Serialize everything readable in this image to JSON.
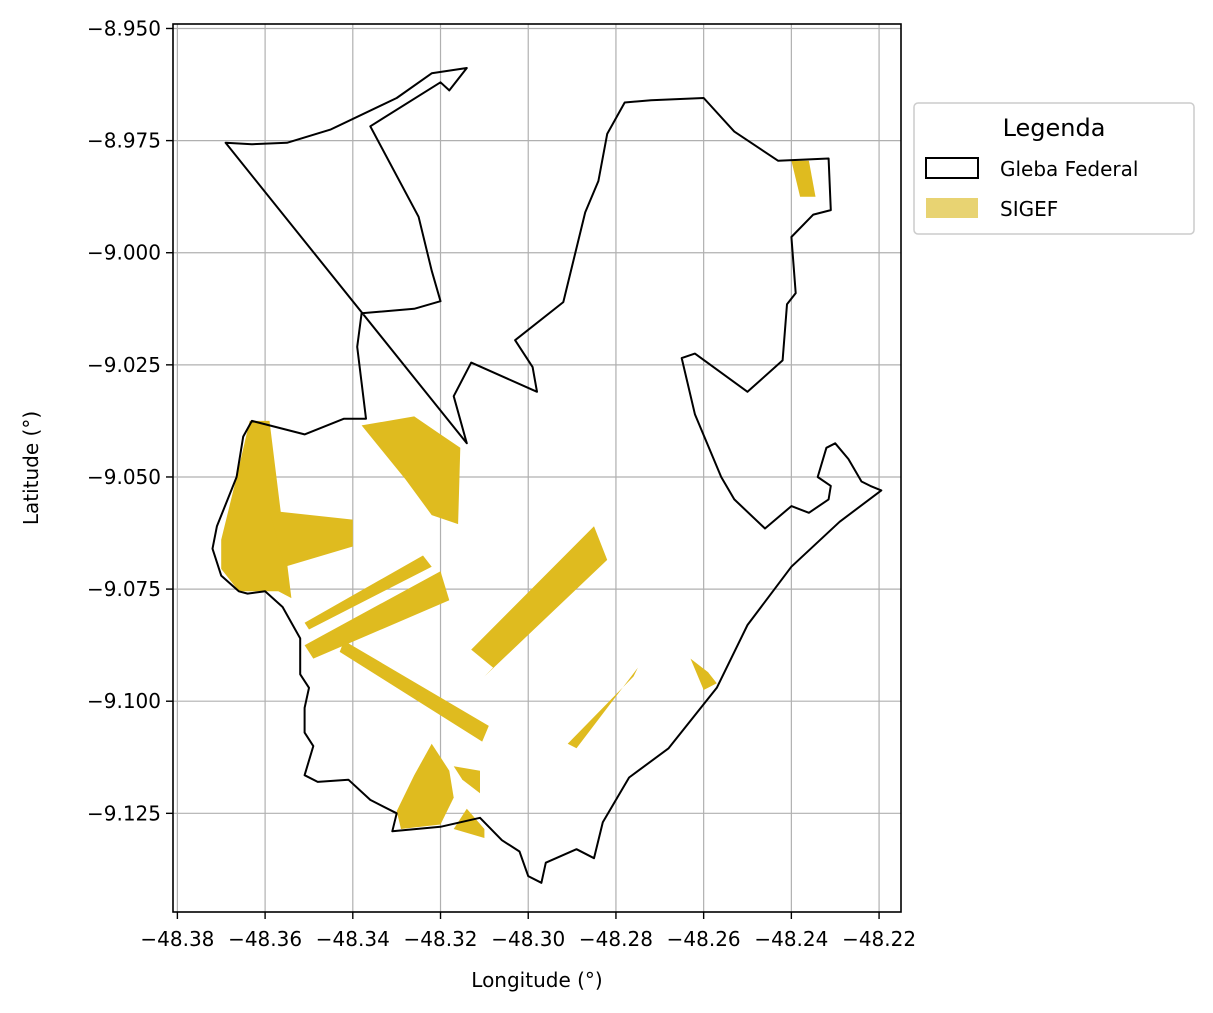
{
  "chart_data": {
    "type": "map",
    "xlabel": "Longitude (°)",
    "ylabel": "Latitude (°)",
    "xlim": [
      -48.381,
      -48.215
    ],
    "ylim": [
      -9.147,
      -8.949
    ],
    "xticks": [
      -48.38,
      -48.36,
      -48.34,
      -48.32,
      -48.3,
      -48.28,
      -48.26,
      -48.24,
      -48.22
    ],
    "xtick_labels": [
      "−48.38",
      "−48.36",
      "−48.34",
      "−48.32",
      "−48.30",
      "−48.28",
      "−48.26",
      "−48.24",
      "−48.22"
    ],
    "yticks": [
      -8.95,
      -8.975,
      -9.0,
      -9.025,
      -9.05,
      -9.075,
      -9.1,
      -9.125
    ],
    "ytick_labels": [
      "−8.950",
      "−8.975",
      "−9.000",
      "−9.025",
      "−9.050",
      "−9.075",
      "−9.100",
      "−9.125"
    ],
    "grid": true,
    "legend": {
      "title": "Legenda",
      "placement": "outside right, upper",
      "entries": [
        {
          "label": "Gleba Federal",
          "fill": "#ffffff",
          "stroke": "#000000"
        },
        {
          "label": "SIGEF",
          "fill": "#e8d372",
          "stroke": "none"
        }
      ]
    },
    "colors": {
      "gleba_stroke": "#000000",
      "sigef_fill": "#dfbb1f",
      "grid": "#b0b0b0"
    },
    "gleba_federal": [
      [
        [
          -48.369,
          -8.9755
        ],
        [
          -48.363,
          -8.9758
        ],
        [
          -48.355,
          -8.9755
        ],
        [
          -48.345,
          -8.9725
        ],
        [
          -48.33,
          -8.9655
        ],
        [
          -48.322,
          -8.96
        ],
        [
          -48.314,
          -8.9588
        ],
        [
          -48.318,
          -8.9638
        ],
        [
          -48.32,
          -8.962
        ],
        [
          -48.336,
          -8.9718
        ],
        [
          -48.325,
          -8.992
        ],
        [
          -48.322,
          -9.004
        ],
        [
          -48.32,
          -9.0108
        ],
        [
          -48.326,
          -9.0125
        ],
        [
          -48.338,
          -9.0135
        ],
        [
          -48.339,
          -9.021
        ],
        [
          -48.338,
          -9.029
        ],
        [
          -48.337,
          -9.037
        ],
        [
          -48.342,
          -9.037
        ],
        [
          -48.351,
          -9.0405
        ],
        [
          -48.359,
          -9.0385
        ],
        [
          -48.363,
          -9.0375
        ],
        [
          -48.365,
          -9.041
        ],
        [
          -48.3665,
          -9.05
        ],
        [
          -48.371,
          -9.061
        ],
        [
          -48.372,
          -9.066
        ],
        [
          -48.37,
          -9.072
        ],
        [
          -48.366,
          -9.0755
        ],
        [
          -48.364,
          -9.076
        ],
        [
          -48.36,
          -9.0755
        ],
        [
          -48.356,
          -9.079
        ],
        [
          -48.352,
          -9.086
        ],
        [
          -48.352,
          -9.094
        ],
        [
          -48.35,
          -9.097
        ],
        [
          -48.351,
          -9.1015
        ],
        [
          -48.351,
          -9.107
        ],
        [
          -48.349,
          -9.11
        ],
        [
          -48.351,
          -9.1165
        ],
        [
          -48.348,
          -9.118
        ],
        [
          -48.341,
          -9.1175
        ],
        [
          -48.336,
          -9.122
        ],
        [
          -48.33,
          -9.125
        ],
        [
          -48.331,
          -9.129
        ],
        [
          -48.32,
          -9.128
        ],
        [
          -48.311,
          -9.126
        ],
        [
          -48.306,
          -9.131
        ],
        [
          -48.302,
          -9.1335
        ],
        [
          -48.3,
          -9.139
        ],
        [
          -48.297,
          -9.1405
        ],
        [
          -48.296,
          -9.136
        ],
        [
          -48.289,
          -9.133
        ],
        [
          -48.285,
          -9.135
        ],
        [
          -48.283,
          -9.127
        ],
        [
          -48.277,
          -9.117
        ],
        [
          -48.268,
          -9.1105
        ],
        [
          -48.257,
          -9.097
        ],
        [
          -48.25,
          -9.083
        ],
        [
          -48.24,
          -9.07
        ],
        [
          -48.229,
          -9.06
        ],
        [
          -48.2195,
          -9.053
        ],
        [
          -48.222,
          -9.052
        ],
        [
          -48.224,
          -9.051
        ],
        [
          -48.227,
          -9.046
        ],
        [
          -48.23,
          -9.0425
        ],
        [
          -48.232,
          -9.0435
        ],
        [
          -48.234,
          -9.05
        ],
        [
          -48.231,
          -9.052
        ],
        [
          -48.2315,
          -9.055
        ],
        [
          -48.236,
          -9.058
        ],
        [
          -48.24,
          -9.0565
        ],
        [
          -48.246,
          -9.0615
        ],
        [
          -48.253,
          -9.055
        ],
        [
          -48.256,
          -9.05
        ],
        [
          -48.262,
          -9.036
        ],
        [
          -48.265,
          -9.0235
        ],
        [
          -48.262,
          -9.0225
        ],
        [
          -48.25,
          -9.031
        ],
        [
          -48.242,
          -9.024
        ],
        [
          -48.241,
          -9.0115
        ],
        [
          -48.239,
          -9.009
        ],
        [
          -48.24,
          -8.9965
        ],
        [
          -48.235,
          -8.9915
        ],
        [
          -48.231,
          -8.9905
        ],
        [
          -48.2315,
          -8.979
        ],
        [
          -48.243,
          -8.9795
        ],
        [
          -48.253,
          -8.973
        ],
        [
          -48.26,
          -8.9655
        ],
        [
          -48.272,
          -8.966
        ],
        [
          -48.278,
          -8.9665
        ],
        [
          -48.282,
          -8.9735
        ],
        [
          -48.284,
          -8.984
        ],
        [
          -48.287,
          -8.991
        ],
        [
          -48.292,
          -9.011
        ],
        [
          -48.303,
          -9.0195
        ],
        [
          -48.301,
          -9.0225
        ],
        [
          -48.299,
          -9.0255
        ],
        [
          -48.298,
          -9.031
        ],
        [
          -48.313,
          -9.0245
        ],
        [
          -48.317,
          -9.032
        ],
        [
          -48.314,
          -9.0425
        ]
      ]
    ],
    "sigef": [
      [
        [
          -48.3635,
          -9.0375
        ],
        [
          -48.359,
          -9.0375
        ],
        [
          -48.354,
          -9.077
        ],
        [
          -48.357,
          -9.0755
        ],
        [
          -48.366,
          -9.0755
        ],
        [
          -48.37,
          -9.0705
        ],
        [
          -48.37,
          -9.064
        ],
        [
          -48.3665,
          -9.05
        ]
      ],
      [
        [
          -48.359,
          -9.0575
        ],
        [
          -48.34,
          -9.0595
        ],
        [
          -48.34,
          -9.0655
        ],
        [
          -48.3555,
          -9.07
        ]
      ],
      [
        [
          -48.338,
          -9.0385
        ],
        [
          -48.326,
          -9.0365
        ],
        [
          -48.32,
          -9.0405
        ],
        [
          -48.3155,
          -9.0435
        ],
        [
          -48.316,
          -9.0605
        ],
        [
          -48.322,
          -9.0585
        ],
        [
          -48.328,
          -9.0505
        ]
      ],
      [
        [
          -48.351,
          -9.0825
        ],
        [
          -48.324,
          -9.0675
        ],
        [
          -48.322,
          -9.07
        ],
        [
          -48.35,
          -9.084
        ]
      ],
      [
        [
          -48.351,
          -9.0875
        ],
        [
          -48.32,
          -9.071
        ],
        [
          -48.318,
          -9.0775
        ],
        [
          -48.349,
          -9.0905
        ]
      ],
      [
        [
          -48.342,
          -9.0865
        ],
        [
          -48.309,
          -9.1055
        ],
        [
          -48.3105,
          -9.109
        ],
        [
          -48.343,
          -9.089
        ]
      ],
      [
        [
          -48.313,
          -9.0885
        ],
        [
          -48.285,
          -9.061
        ],
        [
          -48.282,
          -9.0685
        ],
        [
          -48.31,
          -9.0945
        ],
        [
          -48.308,
          -9.0925
        ]
      ],
      [
        [
          -48.289,
          -9.1105
        ],
        [
          -48.275,
          -9.0925
        ],
        [
          -48.276,
          -9.0945
        ],
        [
          -48.291,
          -9.1095
        ]
      ],
      [
        [
          -48.263,
          -9.0905
        ],
        [
          -48.259,
          -9.0935
        ],
        [
          -48.257,
          -9.096
        ],
        [
          -48.26,
          -9.0975
        ]
      ],
      [
        [
          -48.322,
          -9.1095
        ],
        [
          -48.326,
          -9.1165
        ],
        [
          -48.33,
          -9.1245
        ],
        [
          -48.329,
          -9.1285
        ],
        [
          -48.32,
          -9.1275
        ],
        [
          -48.317,
          -9.1215
        ],
        [
          -48.318,
          -9.1155
        ]
      ],
      [
        [
          -48.317,
          -9.1145
        ],
        [
          -48.311,
          -9.1155
        ],
        [
          -48.311,
          -9.1205
        ],
        [
          -48.315,
          -9.1175
        ]
      ],
      [
        [
          -48.314,
          -9.124
        ],
        [
          -48.31,
          -9.1285
        ],
        [
          -48.31,
          -9.1305
        ],
        [
          -48.317,
          -9.1285
        ]
      ],
      [
        [
          -48.24,
          -8.9795
        ],
        [
          -48.236,
          -8.9795
        ],
        [
          -48.2345,
          -8.9875
        ],
        [
          -48.238,
          -8.9875
        ]
      ]
    ]
  }
}
